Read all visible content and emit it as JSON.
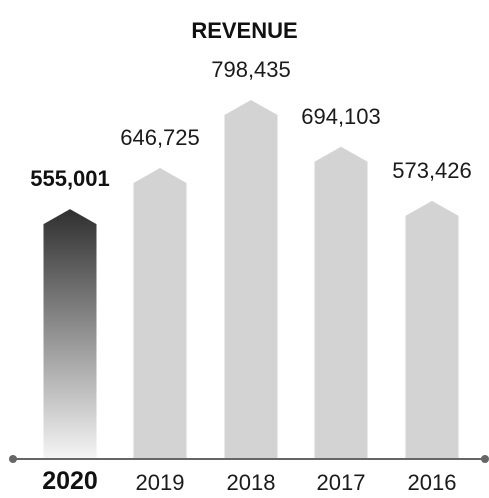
{
  "chart_data": {
    "type": "bar",
    "title": "REVENUE",
    "categories": [
      "2020",
      "2019",
      "2018",
      "2017",
      "2016"
    ],
    "values": [
      555001,
      646725,
      798435,
      694103,
      573426
    ],
    "value_labels": [
      "555,001",
      "646,725",
      "798,435",
      "694,103",
      "573,426"
    ],
    "highlight_category": "2020",
    "xlabel": "",
    "ylabel": "",
    "grid": false,
    "legend": "none",
    "colors": {
      "bar": "#d3d3d3",
      "highlight_top": "#2f2f2f",
      "highlight_bottom": "#f4f4f4",
      "axis": "#666666",
      "text": "#111111"
    }
  }
}
